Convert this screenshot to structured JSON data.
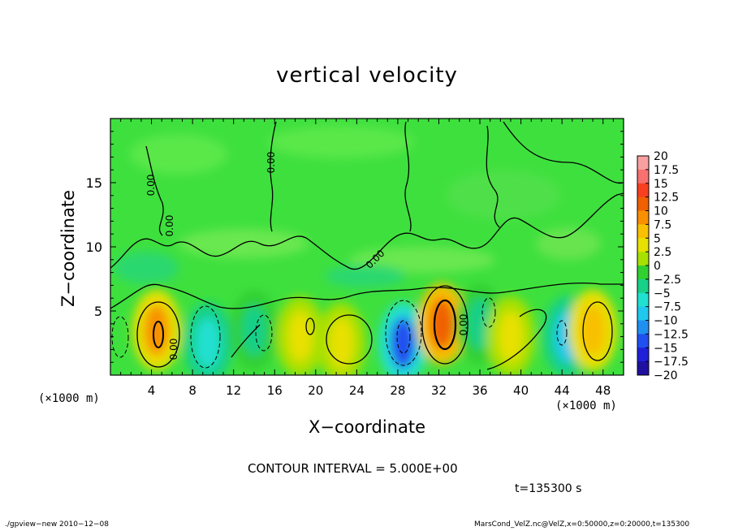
{
  "chart_data": {
    "type": "heatmap",
    "title": "vertical velocity",
    "xlabel": "X−coordinate",
    "ylabel": "Z−coordinate",
    "x_unit_left": "(×1000 m)",
    "x_unit_right": "(×1000 m)",
    "xlim": [
      0,
      50
    ],
    "ylim": [
      0,
      20
    ],
    "x_ticks": [
      4,
      8,
      12,
      16,
      20,
      24,
      28,
      32,
      36,
      40,
      44,
      48
    ],
    "x_tick_labels": [
      "4",
      "8",
      "12",
      "16",
      "20",
      "24",
      "28",
      "32",
      "36",
      "40",
      "44",
      "48"
    ],
    "y_ticks": [
      5,
      10,
      15
    ],
    "y_tick_labels": [
      "5",
      "10",
      "15"
    ],
    "colorbar": {
      "levels": [
        20,
        17.5,
        15,
        12.5,
        10,
        7.5,
        5,
        2.5,
        0,
        -2.5,
        -5,
        -7.5,
        -10,
        -12.5,
        -15,
        -17.5,
        -20
      ],
      "labels": [
        "20",
        "17.5",
        "15",
        "12.5",
        "10",
        "7.5",
        "5",
        "2.5",
        "0",
        "−2.5",
        "−5",
        "−7.5",
        "−10",
        "−12.5",
        "−15",
        "−17.5",
        "−20"
      ],
      "colors": [
        "#f8a0a0",
        "#f87070",
        "#f84020",
        "#f06000",
        "#f89000",
        "#f8c000",
        "#e8e000",
        "#a8e000",
        "#30d030",
        "#18d088",
        "#20e0d0",
        "#20c8f0",
        "#2090f0",
        "#2050f0",
        "#2020d8",
        "#2010a0",
        "#8020c0"
      ]
    },
    "features": [
      {
        "x": 4.5,
        "z": 3.5,
        "value": 10
      },
      {
        "x": 9.5,
        "z": 2.5,
        "value": -5
      },
      {
        "x": 14,
        "z": 3.5,
        "value": -2.5
      },
      {
        "x": 18.5,
        "z": 3,
        "value": 5
      },
      {
        "x": 22.5,
        "z": 2.5,
        "value": 5
      },
      {
        "x": 28.5,
        "z": 2.5,
        "value": -12.5
      },
      {
        "x": 32.3,
        "z": 4,
        "value": 12.5
      },
      {
        "x": 36,
        "z": 4,
        "value": -2.5
      },
      {
        "x": 39,
        "z": 3,
        "value": 5
      },
      {
        "x": 44.5,
        "z": 3,
        "value": -7.5
      },
      {
        "x": 47,
        "z": 3.5,
        "value": 7.5
      }
    ],
    "contour_labels": [
      "0.00",
      "0.00",
      "0.00",
      "0.00",
      "0.00",
      "0.00"
    ],
    "grid": false
  },
  "contour_interval": "CONTOUR INTERVAL = 5.000E+00",
  "time_label": "t=135300  s",
  "footer_left": "./gpview−new   2010−12−08",
  "footer_right": "MarsCond_VelZ.nc@VelZ,x=0:50000,z=0:20000,t=135300"
}
